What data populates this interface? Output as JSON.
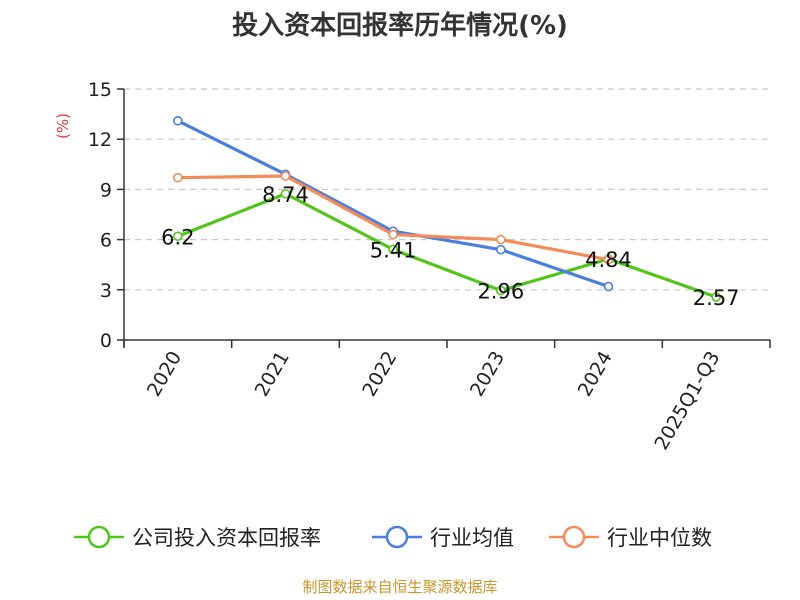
{
  "chart_data": {
    "type": "line",
    "title": "投入资本回报率历年情况(%)",
    "ylabel": "(%)",
    "xlabel": "",
    "ylim": [
      0,
      15
    ],
    "yticks": [
      0,
      3,
      6,
      9,
      12,
      15
    ],
    "grid": true,
    "legend_position": "bottom",
    "categories": [
      "2020",
      "2021",
      "2022",
      "2023",
      "2024",
      "2025Q1-Q3"
    ],
    "series": [
      {
        "name": "公司投入资本回报率",
        "color": "#52c41a",
        "values": [
          6.2,
          8.74,
          5.41,
          2.96,
          4.84,
          2.57
        ],
        "labels": [
          "6.2",
          "8.74",
          "5.41",
          "2.96",
          "4.84",
          "2.57"
        ]
      },
      {
        "name": "行业均值",
        "color": "#4a7fdc",
        "values": [
          13.1,
          9.9,
          6.5,
          5.4,
          3.2,
          null
        ]
      },
      {
        "name": "行业中位数",
        "color": "#f28c5a",
        "values": [
          9.7,
          9.8,
          6.3,
          6.0,
          4.8,
          null
        ]
      }
    ]
  },
  "source_text": "制图数据来自恒生聚源数据库"
}
